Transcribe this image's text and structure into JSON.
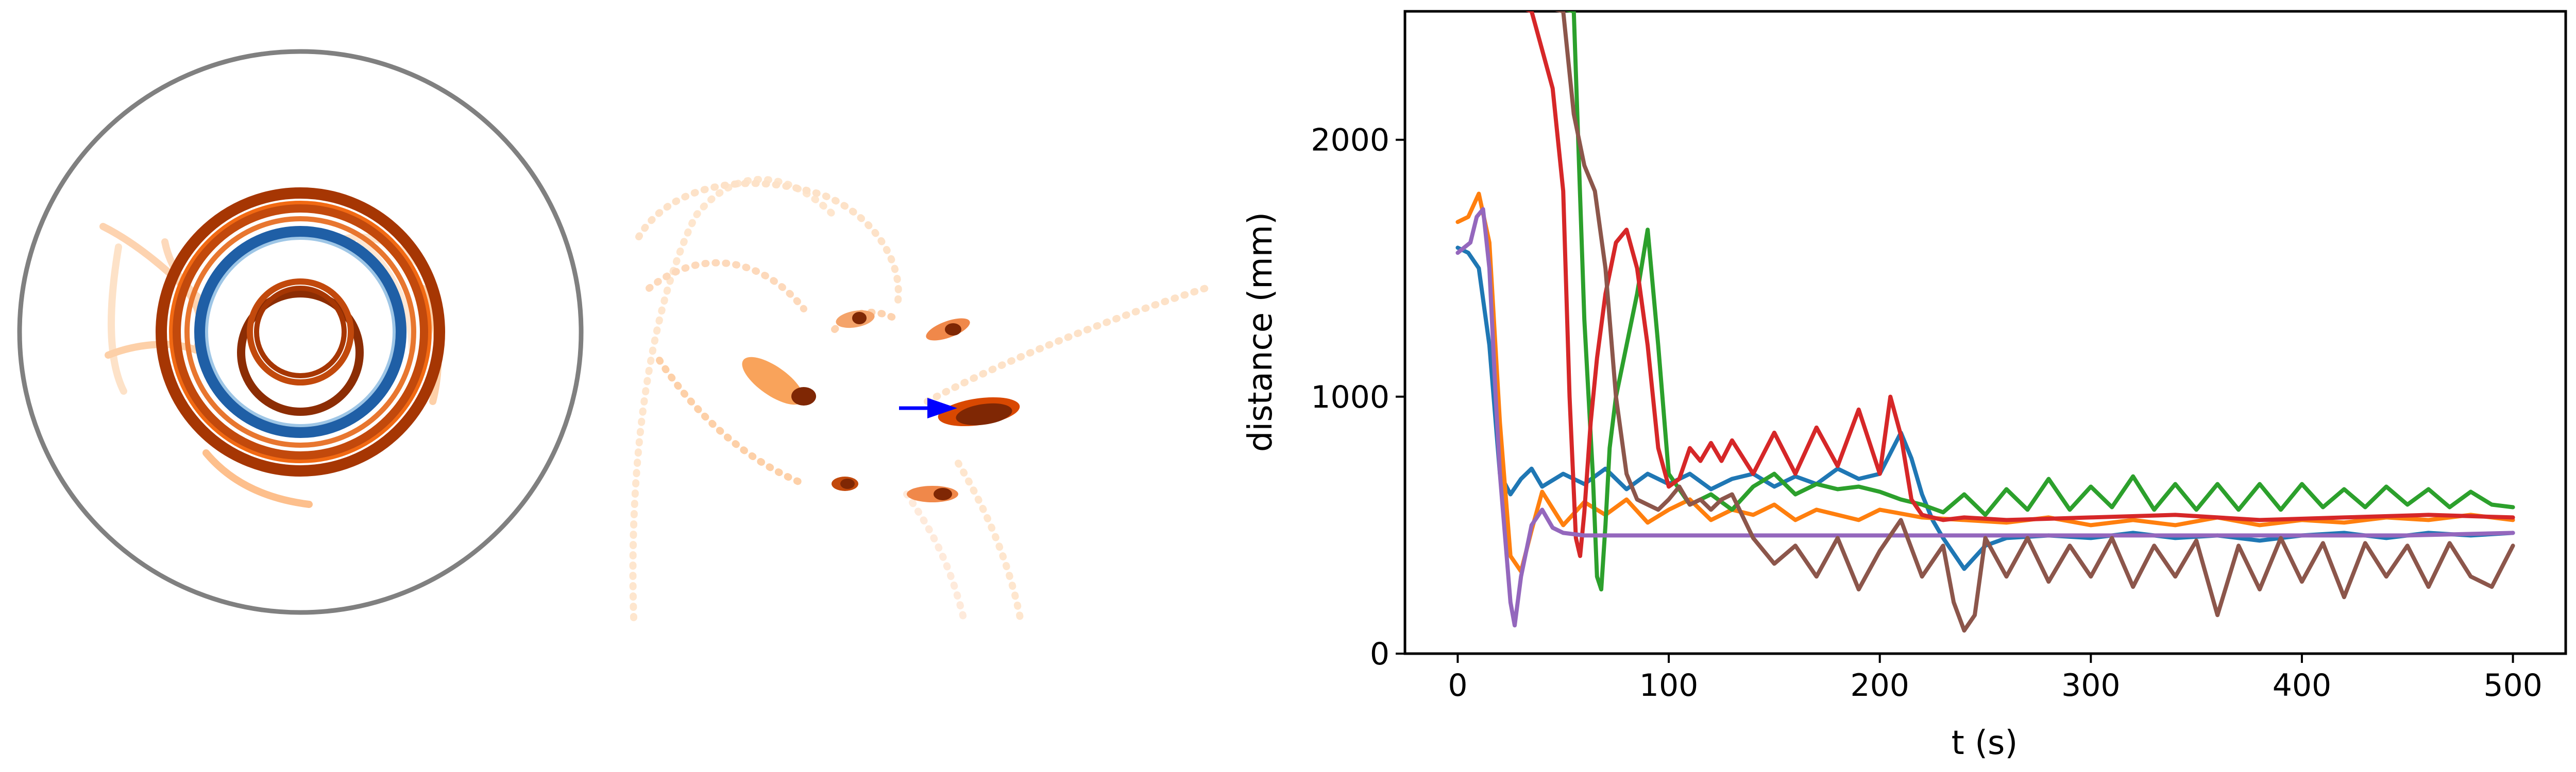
{
  "chart_data": [
    {
      "type": "scatter",
      "panel": "arena-trajectories",
      "title": "",
      "xlabel": "",
      "ylabel": "",
      "arena_boundary_color": "#808080",
      "colormap": "Oranges",
      "highlight_ring_color": "#1f5fa6"
    },
    {
      "type": "scatter",
      "panel": "zoomed-trajectories",
      "title": "",
      "xlabel": "",
      "ylabel": "",
      "colormap": "Oranges",
      "arrow_color": "#0000ff"
    },
    {
      "type": "line",
      "title": "",
      "xlabel": "t (s)",
      "ylabel": "distance (mm)",
      "xlim": [
        -25,
        525
      ],
      "ylim": [
        0,
        2500
      ],
      "xticks": [
        0,
        100,
        200,
        300,
        400,
        500
      ],
      "xtick_labels": [
        "0",
        "100",
        "200",
        "300",
        "400",
        "500"
      ],
      "yticks": [
        0,
        1000,
        2000
      ],
      "ytick_labels": [
        "0",
        "1000",
        "2000"
      ],
      "grid": false,
      "legend": "none",
      "series": [
        {
          "color": "#1f77b4",
          "x": [
            0,
            5,
            10,
            15,
            20,
            25,
            30,
            35,
            40,
            50,
            60,
            70,
            80,
            90,
            100,
            110,
            120,
            130,
            140,
            150,
            160,
            170,
            180,
            190,
            200,
            210,
            215,
            220,
            225,
            230,
            240,
            250,
            260,
            280,
            300,
            320,
            340,
            360,
            380,
            400,
            420,
            440,
            460,
            480,
            500
          ],
          "y": [
            1580,
            1560,
            1500,
            1200,
            700,
            620,
            680,
            720,
            650,
            700,
            660,
            720,
            640,
            700,
            660,
            700,
            640,
            680,
            700,
            650,
            690,
            660,
            720,
            680,
            700,
            860,
            760,
            620,
            520,
            450,
            330,
            420,
            450,
            460,
            450,
            470,
            450,
            460,
            440,
            460,
            470,
            450,
            470,
            460,
            470
          ]
        },
        {
          "color": "#ff7f0e",
          "x": [
            0,
            5,
            10,
            15,
            20,
            25,
            30,
            35,
            40,
            50,
            60,
            70,
            80,
            90,
            100,
            110,
            120,
            130,
            140,
            150,
            160,
            170,
            180,
            190,
            200,
            220,
            240,
            260,
            280,
            300,
            320,
            340,
            360,
            380,
            400,
            420,
            440,
            460,
            480,
            500
          ],
          "y": [
            1680,
            1700,
            1790,
            1600,
            900,
            380,
            320,
            480,
            630,
            500,
            590,
            540,
            600,
            510,
            560,
            600,
            520,
            560,
            540,
            580,
            520,
            560,
            540,
            520,
            560,
            530,
            520,
            510,
            530,
            500,
            520,
            500,
            530,
            500,
            520,
            510,
            530,
            520,
            540,
            520
          ]
        },
        {
          "color": "#2ca02c",
          "x": [
            0,
            55,
            60,
            64,
            66,
            68,
            70,
            72,
            75,
            80,
            85,
            90,
            95,
            100,
            110,
            120,
            130,
            140,
            150,
            160,
            170,
            180,
            190,
            200,
            210,
            220,
            230,
            240,
            250,
            260,
            270,
            280,
            290,
            300,
            310,
            320,
            330,
            340,
            350,
            360,
            370,
            380,
            390,
            400,
            410,
            420,
            430,
            440,
            450,
            460,
            470,
            480,
            490,
            500
          ],
          "y": [
            2600,
            2500,
            1300,
            700,
            300,
            250,
            500,
            800,
            1000,
            1200,
            1400,
            1650,
            1200,
            700,
            580,
            620,
            560,
            650,
            700,
            620,
            660,
            640,
            650,
            630,
            600,
            580,
            550,
            620,
            540,
            640,
            560,
            680,
            560,
            650,
            570,
            690,
            560,
            660,
            560,
            660,
            560,
            660,
            560,
            660,
            570,
            640,
            570,
            650,
            580,
            640,
            570,
            630,
            580,
            570
          ]
        },
        {
          "color": "#d62728",
          "x": [
            0,
            35,
            40,
            45,
            50,
            53,
            56,
            58,
            60,
            63,
            66,
            70,
            75,
            80,
            85,
            90,
            95,
            100,
            105,
            110,
            115,
            120,
            125,
            130,
            140,
            150,
            160,
            170,
            180,
            190,
            200,
            205,
            210,
            215,
            220,
            230,
            240,
            260,
            300,
            340,
            380,
            420,
            460,
            500
          ],
          "y": [
            2600,
            2500,
            2350,
            2200,
            1800,
            1000,
            450,
            380,
            550,
            900,
            1150,
            1400,
            1600,
            1650,
            1500,
            1200,
            800,
            650,
            680,
            800,
            750,
            820,
            750,
            830,
            700,
            860,
            700,
            880,
            730,
            950,
            700,
            1000,
            850,
            600,
            540,
            520,
            530,
            520,
            530,
            540,
            520,
            530,
            540,
            530
          ]
        },
        {
          "color": "#9467bd",
          "x": [
            0,
            3,
            6,
            9,
            12,
            15,
            18,
            20,
            23,
            25,
            27,
            30,
            35,
            40,
            45,
            50,
            60,
            80,
            100,
            150,
            200,
            250,
            300,
            350,
            400,
            450,
            500
          ],
          "y": [
            1560,
            1580,
            1600,
            1700,
            1730,
            1500,
            1000,
            700,
            400,
            200,
            110,
            300,
            500,
            560,
            490,
            470,
            460,
            460,
            460,
            460,
            460,
            460,
            460,
            460,
            460,
            460,
            470
          ]
        },
        {
          "color": "#8c564b",
          "x": [
            0,
            50,
            55,
            60,
            65,
            70,
            75,
            80,
            85,
            90,
            95,
            100,
            105,
            110,
            115,
            120,
            125,
            130,
            140,
            150,
            160,
            170,
            180,
            190,
            200,
            210,
            220,
            230,
            235,
            240,
            245,
            250,
            260,
            270,
            280,
            290,
            300,
            310,
            320,
            330,
            340,
            350,
            360,
            370,
            380,
            390,
            400,
            410,
            420,
            430,
            440,
            450,
            460,
            470,
            480,
            490,
            500
          ],
          "y": [
            2600,
            2500,
            2100,
            1900,
            1800,
            1500,
            1000,
            700,
            600,
            580,
            560,
            600,
            650,
            580,
            600,
            560,
            600,
            620,
            450,
            350,
            420,
            300,
            450,
            250,
            400,
            520,
            300,
            420,
            200,
            90,
            150,
            450,
            300,
            450,
            280,
            420,
            300,
            450,
            260,
            420,
            300,
            440,
            150,
            420,
            250,
            450,
            280,
            430,
            220,
            430,
            300,
            420,
            260,
            430,
            300,
            260,
            420
          ]
        }
      ]
    }
  ]
}
